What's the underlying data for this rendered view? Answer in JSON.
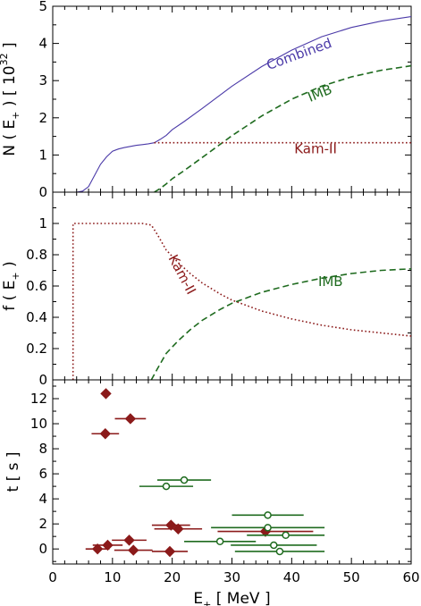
{
  "chart_data": [
    {
      "panel": "top",
      "type": "line",
      "ylabel": "N ( E₊ )  [ 10³² ]",
      "ylabel_parts": {
        "base": "N ( E",
        "sub": "+",
        "mid": " )  [ 10",
        "sup": "32",
        "end": " ]"
      },
      "xlim": [
        0,
        60
      ],
      "ylim": [
        0,
        5
      ],
      "yticks": [
        0,
        1,
        2,
        3,
        4,
        5
      ],
      "series": [
        {
          "name": "Combined",
          "color": "#4b3aa8",
          "style": "solid",
          "x": [
            0,
            4,
            5,
            6,
            7,
            8,
            9,
            10,
            11,
            12,
            13,
            14,
            15,
            16,
            17,
            18,
            19,
            20,
            22,
            25,
            30,
            35,
            40,
            45,
            50,
            55,
            60
          ],
          "y": [
            0,
            0,
            0.03,
            0.15,
            0.45,
            0.75,
            0.95,
            1.1,
            1.16,
            1.2,
            1.23,
            1.26,
            1.28,
            1.3,
            1.33,
            1.42,
            1.53,
            1.68,
            1.9,
            2.25,
            2.85,
            3.38,
            3.82,
            4.18,
            4.43,
            4.6,
            4.72
          ]
        },
        {
          "name": "IMB",
          "color": "#1f6b1f",
          "style": "dashed",
          "x": [
            17,
            18,
            19,
            20,
            22,
            25,
            30,
            35,
            40,
            45,
            50,
            55,
            60
          ],
          "y": [
            0,
            0.1,
            0.22,
            0.36,
            0.58,
            0.93,
            1.52,
            2.05,
            2.5,
            2.85,
            3.1,
            3.28,
            3.4
          ]
        },
        {
          "name": "Kam-II",
          "color": "#8b1a1a",
          "style": "dotted",
          "x": [
            17,
            60
          ],
          "y": [
            1.33,
            1.33
          ]
        }
      ],
      "labels": [
        {
          "text": "Combined",
          "x": 41.5,
          "y": 3.6,
          "rotate": -20,
          "color": "#4b3aa8"
        },
        {
          "text": "IMB",
          "x": 45,
          "y": 2.55,
          "rotate": -22,
          "color": "#1f6b1f"
        },
        {
          "text": "Kam-II",
          "x": 44,
          "y": 1.05,
          "rotate": 0,
          "color": "#8b1a1a"
        }
      ]
    },
    {
      "panel": "middle",
      "type": "line",
      "ylabel": "f ( E₊ )",
      "ylabel_parts": {
        "base": "f ( E",
        "sub": "+",
        "end": " )"
      },
      "xlim": [
        0,
        60
      ],
      "ylim": [
        0,
        1.2
      ],
      "yticks": [
        0,
        0.2,
        0.4,
        0.6,
        0.8,
        1
      ],
      "ytick_labels": [
        "0",
        "0.2",
        "0.4",
        "0.6",
        "0.8",
        "1"
      ],
      "series": [
        {
          "name": "Kam-II",
          "color": "#8b1a1a",
          "style": "dotted",
          "x": [
            3.4,
            3.4,
            4,
            10,
            15,
            16.5,
            17.5,
            19,
            21,
            23,
            25,
            28,
            30,
            35,
            40,
            45,
            50,
            55,
            60
          ],
          "y": [
            0,
            1,
            1,
            1,
            1,
            0.99,
            0.93,
            0.83,
            0.75,
            0.68,
            0.62,
            0.55,
            0.51,
            0.44,
            0.39,
            0.35,
            0.32,
            0.3,
            0.28
          ]
        },
        {
          "name": "IMB",
          "color": "#1f6b1f",
          "style": "dashed",
          "x": [
            16.5,
            17.5,
            19,
            21,
            23,
            25,
            28,
            30,
            35,
            40,
            45,
            50,
            55,
            60
          ],
          "y": [
            0,
            0.07,
            0.17,
            0.25,
            0.32,
            0.38,
            0.45,
            0.49,
            0.56,
            0.61,
            0.65,
            0.68,
            0.7,
            0.71
          ]
        }
      ],
      "labels": [
        {
          "text": "Kam-II",
          "x": 21,
          "y": 0.66,
          "rotate": 62,
          "color": "#8b1a1a"
        },
        {
          "text": "IMB",
          "x": 46.5,
          "y": 0.6,
          "rotate": 0,
          "color": "#1f6b1f"
        }
      ]
    },
    {
      "panel": "bottom",
      "type": "scatter",
      "xlabel": "E₊  [ MeV ]",
      "xlabel_parts": {
        "base": "E",
        "sub": "+",
        "end": "  [ MeV ]"
      },
      "ylabel": "t  [ s ]",
      "xlim": [
        0,
        60
      ],
      "ylim": [
        -1.2,
        13.5
      ],
      "yticks": [
        0,
        2,
        4,
        6,
        8,
        10,
        12
      ],
      "xticks": [
        0,
        10,
        20,
        30,
        40,
        50,
        60
      ],
      "series": [
        {
          "name": "Kam-II",
          "color": "#8b1a1a",
          "marker": "diamond",
          "points": [
            {
              "x": 7.5,
              "y": 0.0,
              "xerr": 2.0
            },
            {
              "x": 9.2,
              "y": 0.3,
              "xerr": 2.5
            },
            {
              "x": 12.8,
              "y": 0.7,
              "xerr": 2.9
            },
            {
              "x": 13.5,
              "y": -0.1,
              "xerr": 3.2
            },
            {
              "x": 19.6,
              "y": -0.2,
              "xerr": 3.0
            },
            {
              "x": 19.8,
              "y": 1.9,
              "xerr": 3.2
            },
            {
              "x": 21.0,
              "y": 1.6,
              "xerr": 4.0
            },
            {
              "x": 35.6,
              "y": 1.4,
              "xerr": 8.0
            },
            {
              "x": 8.8,
              "y": 9.2,
              "xerr": 2.3
            },
            {
              "x": 8.9,
              "y": 12.4,
              "xerr": 0
            },
            {
              "x": 13.0,
              "y": 10.4,
              "xerr": 2.6
            }
          ]
        },
        {
          "name": "IMB",
          "color": "#1f6b1f",
          "marker": "open-circle",
          "points": [
            {
              "x": 38.0,
              "y": -0.2,
              "xerr": 7.5
            },
            {
              "x": 37.0,
              "y": 0.3,
              "xerr": 7.2
            },
            {
              "x": 28.0,
              "y": 0.6,
              "xerr": 6.0
            },
            {
              "x": 39.0,
              "y": 1.1,
              "xerr": 6.5
            },
            {
              "x": 36.0,
              "y": 1.7,
              "xerr": 9.5
            },
            {
              "x": 36.0,
              "y": 2.7,
              "xerr": 6.0
            },
            {
              "x": 19.0,
              "y": 5.0,
              "xerr": 4.5
            },
            {
              "x": 22.0,
              "y": 5.5,
              "xerr": 4.5
            }
          ]
        }
      ]
    }
  ]
}
